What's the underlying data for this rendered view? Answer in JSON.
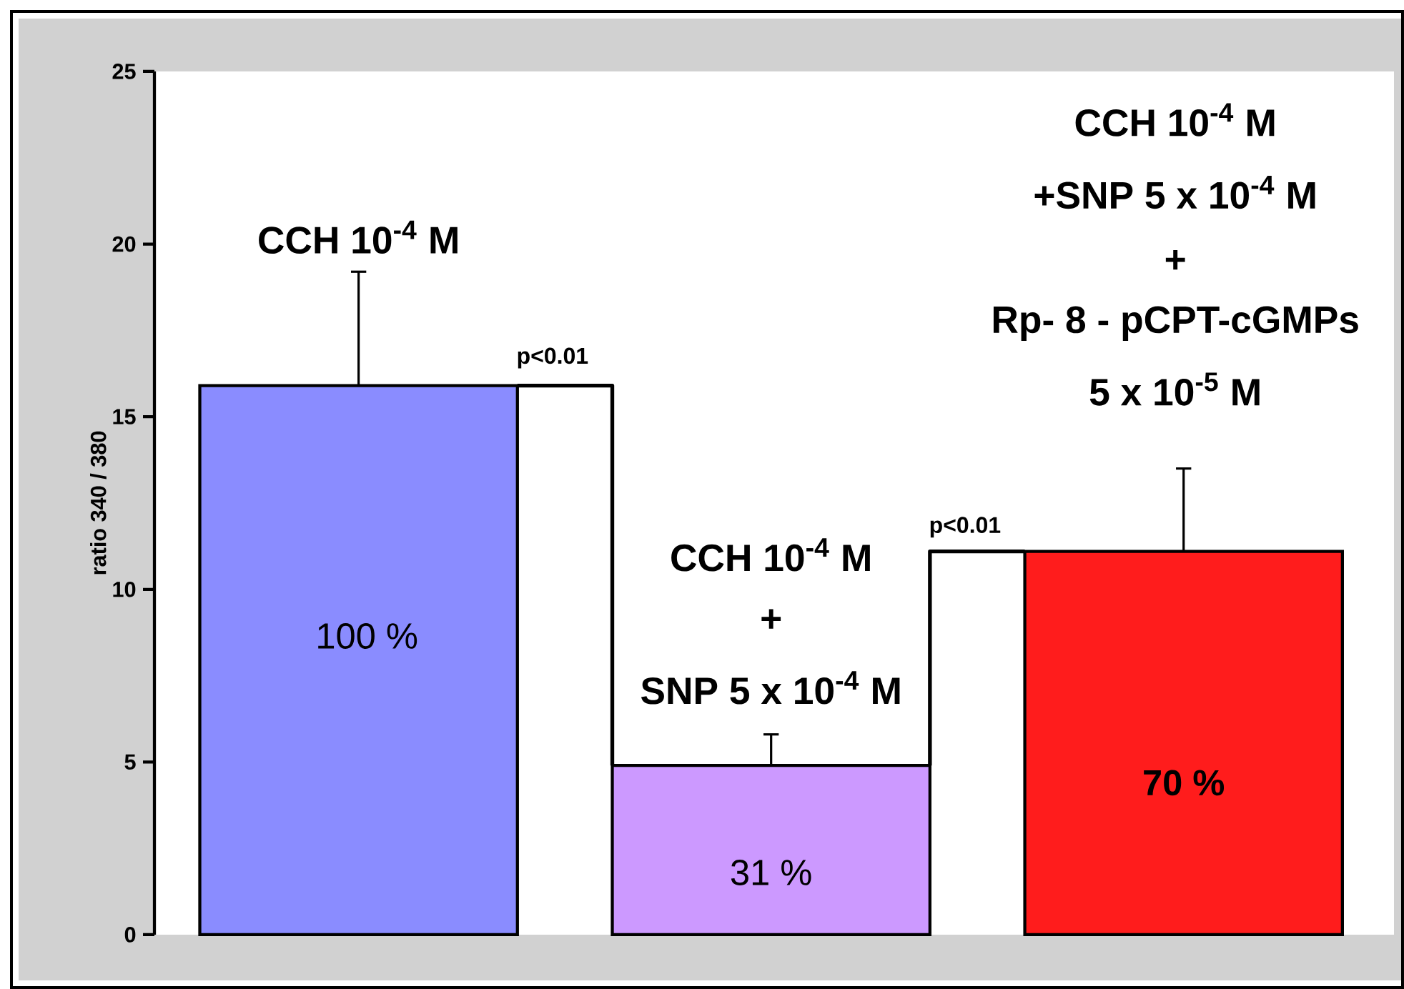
{
  "chart_data": {
    "type": "bar",
    "ylabel": "ratio 340 / 380",
    "categories": [
      null,
      null,
      null
    ],
    "values": [
      15.9,
      4.9,
      11.1
    ],
    "colors": [
      "#8a8cff",
      "#cc99ff",
      "#ff1c1c"
    ],
    "errors": [
      [
        15.9,
        19.2
      ],
      [
        4.9,
        5.8
      ],
      [
        11.1,
        13.5
      ]
    ],
    "ylim": [
      0,
      25
    ],
    "yticks": [
      0,
      5,
      10,
      15,
      20,
      25
    ],
    "grid": false,
    "annotations": [
      "CCH 10$^{-4}$ M",
      "p<0.01",
      "CCH 10$^{-4}$ M",
      "+",
      "SNP 5 x 10$^{-4}$ M",
      "p<0.01",
      "CCH 10$^{-4}$ M",
      "+SNP 5 x 10$^{-4}$ M",
      "+",
      "Rp- 8 - pCPT-cGMPs",
      "5 x 10$^{-5}$ M",
      "100 %",
      "31 %",
      "70 %"
    ]
  }
}
